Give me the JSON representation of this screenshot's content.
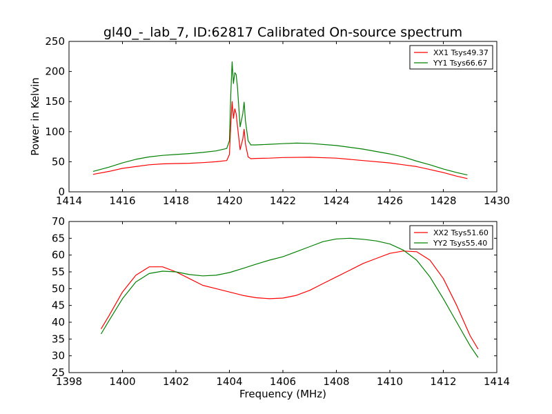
{
  "figure": {
    "title": "gl40_-_lab_7, ID:62817 Calibrated On-source spectrum",
    "ylabel": "Power in Kelvin",
    "xlabel": "Frequency (MHz)"
  },
  "chart_data": [
    {
      "type": "line",
      "title": "gl40_-_lab_7, ID:62817 Calibrated On-source spectrum",
      "xlabel": "",
      "ylabel": "Power in Kelvin",
      "xlim": [
        1414,
        1430
      ],
      "ylim": [
        0,
        250
      ],
      "xticks": [
        1414,
        1416,
        1418,
        1420,
        1422,
        1424,
        1426,
        1428,
        1430
      ],
      "yticks": [
        0,
        50,
        100,
        150,
        200,
        250
      ],
      "grid": false,
      "legend_position": "top-right",
      "series": [
        {
          "name": "XX1 Tsys49.37",
          "color": "#ff0000",
          "points": [
            [
              1414.9,
              29
            ],
            [
              1415.5,
              34
            ],
            [
              1416,
              39
            ],
            [
              1416.5,
              42
            ],
            [
              1417,
              45
            ],
            [
              1417.5,
              46.5
            ],
            [
              1418,
              47
            ],
            [
              1418.5,
              47.5
            ],
            [
              1419,
              48.5
            ],
            [
              1419.5,
              50
            ],
            [
              1419.9,
              52
            ],
            [
              1420.0,
              62
            ],
            [
              1420.05,
              110
            ],
            [
              1420.1,
              150
            ],
            [
              1420.15,
              122
            ],
            [
              1420.2,
              138
            ],
            [
              1420.25,
              130
            ],
            [
              1420.3,
              110
            ],
            [
              1420.4,
              70
            ],
            [
              1420.5,
              88
            ],
            [
              1420.55,
              104
            ],
            [
              1420.6,
              80
            ],
            [
              1420.7,
              58
            ],
            [
              1420.8,
              55
            ],
            [
              1421,
              55.5
            ],
            [
              1421.5,
              56
            ],
            [
              1422,
              57
            ],
            [
              1423,
              57.5
            ],
            [
              1424,
              56
            ],
            [
              1425,
              52
            ],
            [
              1426,
              48
            ],
            [
              1426.5,
              45
            ],
            [
              1427,
              42
            ],
            [
              1427.5,
              37
            ],
            [
              1428,
              32
            ],
            [
              1428.5,
              26
            ],
            [
              1428.9,
              22
            ]
          ]
        },
        {
          "name": "YY1 Tsys66.67",
          "color": "#008000",
          "points": [
            [
              1414.9,
              34
            ],
            [
              1415.5,
              41
            ],
            [
              1416,
              48
            ],
            [
              1416.5,
              54
            ],
            [
              1417,
              58
            ],
            [
              1417.5,
              60.5
            ],
            [
              1418,
              62
            ],
            [
              1418.5,
              63.5
            ],
            [
              1419,
              65.5
            ],
            [
              1419.5,
              68
            ],
            [
              1419.9,
              72
            ],
            [
              1420.0,
              85
            ],
            [
              1420.05,
              160
            ],
            [
              1420.1,
              216
            ],
            [
              1420.15,
              180
            ],
            [
              1420.2,
              198
            ],
            [
              1420.25,
              195
            ],
            [
              1420.3,
              175
            ],
            [
              1420.4,
              108
            ],
            [
              1420.5,
              130
            ],
            [
              1420.55,
              149
            ],
            [
              1420.6,
              118
            ],
            [
              1420.7,
              85
            ],
            [
              1420.8,
              78
            ],
            [
              1421,
              78
            ],
            [
              1421.5,
              79
            ],
            [
              1422,
              80
            ],
            [
              1422.5,
              81
            ],
            [
              1423,
              80.5
            ],
            [
              1424,
              77
            ],
            [
              1425,
              71
            ],
            [
              1426,
              63
            ],
            [
              1426.5,
              58
            ],
            [
              1427,
              51
            ],
            [
              1427.5,
              45
            ],
            [
              1428,
              38
            ],
            [
              1428.5,
              32
            ],
            [
              1428.9,
              28
            ]
          ]
        }
      ]
    },
    {
      "type": "line",
      "title": "",
      "xlabel": "Frequency (MHz)",
      "ylabel": "",
      "xlim": [
        1398,
        1414
      ],
      "ylim": [
        25,
        70
      ],
      "xticks": [
        1398,
        1400,
        1402,
        1404,
        1406,
        1408,
        1410,
        1412,
        1414
      ],
      "yticks": [
        25,
        30,
        35,
        40,
        45,
        50,
        55,
        60,
        65,
        70
      ],
      "grid": false,
      "legend_position": "top-right",
      "series": [
        {
          "name": "XX2 Tsys51.60",
          "color": "#ff0000",
          "points": [
            [
              1399.2,
              38
            ],
            [
              1399.5,
              42
            ],
            [
              1400,
              49
            ],
            [
              1400.5,
              54
            ],
            [
              1401,
              56.5
            ],
            [
              1401.5,
              56.5
            ],
            [
              1402,
              55
            ],
            [
              1402.5,
              53
            ],
            [
              1403,
              51
            ],
            [
              1403.5,
              50
            ],
            [
              1404,
              49
            ],
            [
              1404.5,
              48
            ],
            [
              1405,
              47.3
            ],
            [
              1405.5,
              47
            ],
            [
              1406,
              47.2
            ],
            [
              1406.5,
              48
            ],
            [
              1407,
              49.5
            ],
            [
              1407.5,
              51.5
            ],
            [
              1408,
              53.5
            ],
            [
              1408.5,
              55.5
            ],
            [
              1409,
              57.5
            ],
            [
              1409.5,
              59
            ],
            [
              1410,
              60.5
            ],
            [
              1410.5,
              61.2
            ],
            [
              1411,
              61
            ],
            [
              1411.5,
              58.5
            ],
            [
              1412,
              53
            ],
            [
              1412.5,
              45
            ],
            [
              1413,
              36
            ],
            [
              1413.3,
              32
            ]
          ]
        },
        {
          "name": "YY2 Tsys55.40",
          "color": "#008000",
          "points": [
            [
              1399.2,
              36.5
            ],
            [
              1399.5,
              40.5
            ],
            [
              1400,
              47
            ],
            [
              1400.5,
              52
            ],
            [
              1401,
              54.5
            ],
            [
              1401.5,
              55.2
            ],
            [
              1402,
              55
            ],
            [
              1402.5,
              54.2
            ],
            [
              1403,
              53.8
            ],
            [
              1403.5,
              54
            ],
            [
              1404,
              54.8
            ],
            [
              1404.5,
              56
            ],
            [
              1405,
              57.3
            ],
            [
              1405.5,
              58.5
            ],
            [
              1406,
              59.5
            ],
            [
              1406.5,
              61
            ],
            [
              1407,
              62.5
            ],
            [
              1407.5,
              64
            ],
            [
              1408,
              64.8
            ],
            [
              1408.5,
              65
            ],
            [
              1409,
              64.7
            ],
            [
              1409.5,
              64.2
            ],
            [
              1410,
              63.3
            ],
            [
              1410.5,
              61.5
            ],
            [
              1411,
              58.5
            ],
            [
              1411.5,
              53.5
            ],
            [
              1412,
              47
            ],
            [
              1412.5,
              40
            ],
            [
              1413,
              33
            ],
            [
              1413.3,
              29.5
            ]
          ]
        }
      ]
    }
  ]
}
